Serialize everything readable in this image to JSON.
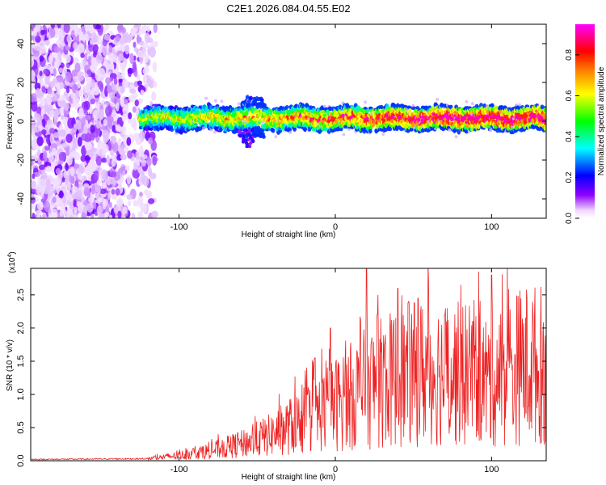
{
  "title": "C2E1.2026.084.04.55.E02",
  "chart_data": [
    {
      "type": "heatmap",
      "name": "spectrogram",
      "xlabel": "Height of straight line (km)",
      "ylabel": "Frequency (Hz)",
      "xlim": [
        -195,
        135
      ],
      "ylim": [
        -50,
        50
      ],
      "xticks": [
        -100,
        0,
        100
      ],
      "yticks": [
        40,
        20,
        0,
        -20,
        -40
      ],
      "xtick_labels": [
        "-100",
        "0",
        "100"
      ],
      "ytick_labels": [
        "40",
        "20",
        "0",
        "-20",
        "-40"
      ],
      "band_center_hz": 1.5,
      "band_halfwidth_hz": 4,
      "band_start_km": -125,
      "noise_region_km": [
        -195,
        -115
      ],
      "colorbar": {
        "label": "Normalized spectral amplitude",
        "range": [
          0.0,
          0.95
        ],
        "ticks": [
          0.0,
          0.2,
          0.4,
          0.6,
          0.8
        ],
        "tick_labels": [
          "0.0",
          "0.2",
          "0.4",
          "0.6",
          "0.8"
        ],
        "colors": [
          "#ffffff",
          "#8f00ff",
          "#0000ff",
          "#00ffff",
          "#00ff00",
          "#ffff00",
          "#ff8000",
          "#ff0000",
          "#ff00ff"
        ]
      }
    },
    {
      "type": "line",
      "name": "snr",
      "xlabel": "Height of straight line (km)",
      "ylabel": "SNR (10 * v/v)",
      "multiplier": "(x10",
      "multiplier_exp": "4",
      "multiplier_close": ")",
      "xlim": [
        -195,
        135
      ],
      "ylim": [
        0,
        2.9
      ],
      "xticks": [
        -100,
        0,
        100
      ],
      "yticks": [
        0.0,
        0.5,
        1.0,
        1.5,
        2.0,
        2.5
      ],
      "xtick_labels": [
        "-100",
        "0",
        "100"
      ],
      "ytick_labels": [
        "0.0",
        "0.5",
        "1.0",
        "1.5",
        "2.0",
        "2.5"
      ],
      "color": "#ee2222",
      "envelope_x": [
        -195,
        -120,
        -100,
        -80,
        -60,
        -40,
        -20,
        0,
        20,
        40,
        60,
        80,
        100,
        120,
        135
      ],
      "envelope_y": [
        0.02,
        0.03,
        0.08,
        0.15,
        0.25,
        0.4,
        0.62,
        0.85,
        1.1,
        1.25,
        1.35,
        1.3,
        1.2,
        1.45,
        1.45
      ],
      "peaks": [
        [
          -13,
          1.55
        ],
        [
          -3,
          2.0
        ],
        [
          20,
          2.9
        ],
        [
          27,
          2.2
        ],
        [
          40,
          2.6
        ],
        [
          47,
          2.4
        ],
        [
          53,
          2.45
        ],
        [
          70,
          2.2
        ],
        [
          88,
          2.1
        ],
        [
          100,
          2.8
        ],
        [
          115,
          1.6
        ],
        [
          130,
          1.35
        ]
      ]
    }
  ]
}
